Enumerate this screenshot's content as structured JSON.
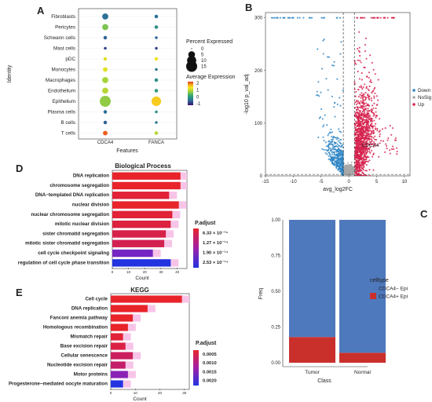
{
  "chart_data": [
    {
      "panel_label": "A",
      "type": "scatter",
      "subtype": "dot_plot",
      "categories": [
        "Fibroblasts",
        "Pericytes",
        "Schwann cells",
        "Mast cells",
        "pDC",
        "Monocytes",
        "Macrophages",
        "Endothelium",
        "Epithelium",
        "Plasma cells",
        "B cells",
        "T cells"
      ],
      "features": [
        "CDCA4",
        "FANCA"
      ],
      "xlabel": "Features",
      "ylabel": "Identity",
      "points": [
        {
          "category": "Fibroblasts",
          "feature": "CDCA4",
          "pct": 4,
          "avg": -0.6
        },
        {
          "category": "Fibroblasts",
          "feature": "FANCA",
          "pct": 1,
          "avg": -0.6
        },
        {
          "category": "Pericytes",
          "feature": "CDCA4",
          "pct": 4,
          "avg": 0.3
        },
        {
          "category": "Pericytes",
          "feature": "FANCA",
          "pct": 1,
          "avg": -0.3
        },
        {
          "category": "Schwann cells",
          "feature": "CDCA4",
          "pct": 1,
          "avg": -0.7
        },
        {
          "category": "Schwann cells",
          "feature": "FANCA",
          "pct": 0.5,
          "avg": -0.7
        },
        {
          "category": "Mast cells",
          "feature": "CDCA4",
          "pct": 0.5,
          "avg": -0.9
        },
        {
          "category": "Mast cells",
          "feature": "FANCA",
          "pct": 0.5,
          "avg": -0.9
        },
        {
          "category": "pDC",
          "feature": "CDCA4",
          "pct": 1,
          "avg": 0.9
        },
        {
          "category": "pDC",
          "feature": "FANCA",
          "pct": 1,
          "avg": 1.0
        },
        {
          "category": "Monocytes",
          "feature": "CDCA4",
          "pct": 2,
          "avg": 0.9
        },
        {
          "category": "Monocytes",
          "feature": "FANCA",
          "pct": 0.5,
          "avg": -0.5
        },
        {
          "category": "Macrophages",
          "feature": "CDCA4",
          "pct": 4,
          "avg": 0.5
        },
        {
          "category": "Macrophages",
          "feature": "FANCA",
          "pct": 1,
          "avg": -0.3
        },
        {
          "category": "Endothelium",
          "feature": "CDCA4",
          "pct": 4,
          "avg": 0.6
        },
        {
          "category": "Endothelium",
          "feature": "FANCA",
          "pct": 1,
          "avg": -0.2
        },
        {
          "category": "Epithelium",
          "feature": "CDCA4",
          "pct": 15,
          "avg": 0.4
        },
        {
          "category": "Epithelium",
          "feature": "FANCA",
          "pct": 11,
          "avg": 1.3
        },
        {
          "category": "Plasma cells",
          "feature": "CDCA4",
          "pct": 1,
          "avg": -0.6
        },
        {
          "category": "Plasma cells",
          "feature": "FANCA",
          "pct": 0.5,
          "avg": -0.3
        },
        {
          "category": "B cells",
          "feature": "CDCA4",
          "pct": 1,
          "avg": -0.7
        },
        {
          "category": "B cells",
          "feature": "FANCA",
          "pct": 0.5,
          "avg": -0.5
        },
        {
          "category": "T cells",
          "feature": "CDCA4",
          "pct": 2,
          "avg": 2.0
        },
        {
          "category": "T cells",
          "feature": "FANCA",
          "pct": 1,
          "avg": 0.6
        }
      ],
      "size_legend_title": "Percent Expressed",
      "size_legend_values": [
        0,
        5,
        10,
        15
      ],
      "color_legend_title": "Average Expression",
      "color_legend_ticks": [
        2,
        1,
        0,
        -1
      ],
      "color_range": [
        -1.2,
        2.2
      ],
      "colors": [
        "#3b0f70",
        "#2c6e9b",
        "#2fa776",
        "#a6d33a",
        "#f9e721",
        "#f3a21b",
        "#e63a1e"
      ]
    },
    {
      "panel_label": "B",
      "type": "scatter",
      "subtype": "volcano",
      "xlabel": "avg_log2FC",
      "ylabel": "-log10 p_val_adj",
      "xlim": [
        -15,
        11
      ],
      "ylim": [
        0,
        310
      ],
      "x_ticks": [
        -15,
        -10,
        -5,
        0,
        5,
        10
      ],
      "y_ticks": [
        0,
        100,
        200,
        300
      ],
      "x_thresholds": [
        -1,
        1
      ],
      "y_threshold": 1.3,
      "annotation": {
        "text": "CDCA4",
        "x": 2.3,
        "y": 55
      },
      "legend": [
        "Down",
        "NoSig",
        "Up"
      ],
      "colors": {
        "Down": "#2f86c6",
        "NoSig": "#a8a8a8",
        "Up": "#d6224d"
      }
    },
    {
      "panel_label": "D",
      "type": "bar",
      "orientation": "horizontal",
      "title": "Biological Process",
      "xlabel": "Count",
      "x_ticks": [
        0,
        10,
        20,
        30,
        40
      ],
      "xlim": [
        0,
        46
      ],
      "categories": [
        "DNA replication",
        "chromosome segregation",
        "DNA−templated DNA replication",
        "nuclear division",
        "nuclear chromosome segregation",
        "mitotic nuclear division",
        "sister chromatid segregation",
        "mitotic sister chromatid segregation",
        "cell cycle checkpoint signaling",
        "regulation of cell cycle phase transition"
      ],
      "values": [
        42,
        42,
        35,
        41,
        37,
        36,
        33,
        32,
        25,
        36
      ],
      "p_adjust_rank": [
        0,
        0,
        0.05,
        0,
        0.05,
        0.08,
        0.12,
        0.15,
        0.7,
        1.0
      ],
      "legend_title": "P.adjust",
      "legend_labels": [
        "6.33 × 10⁻¹⁵",
        "1.27 × 10⁻¹⁴",
        "1.90 × 10⁻¹⁴",
        "2.53 × 10⁻¹⁴"
      ]
    },
    {
      "panel_label": "E",
      "type": "bar",
      "orientation": "horizontal",
      "title": "KEGG",
      "xlabel": "Count",
      "x_ticks": [
        0,
        10,
        20,
        30
      ],
      "xlim": [
        0,
        32
      ],
      "categories": [
        "Cell cycle",
        "DNA replication",
        "Fanconi anemia pathway",
        "Homologous recombination",
        "Mismatch repair",
        "Base excision repair",
        "Cellular senescence",
        "Nucleotide excision repair",
        "Motor proteins",
        "Progesterone−mediated oocyte maturation"
      ],
      "values": [
        29,
        15,
        9,
        7,
        5,
        6,
        9,
        6,
        7,
        5
      ],
      "p_adjust_rank": [
        0,
        0,
        0,
        0,
        0.05,
        0.1,
        0.2,
        0.25,
        0.6,
        1.0
      ],
      "legend_title": "P.adjust",
      "legend_labels": [
        "0.0005",
        "0.0010",
        "0.0015",
        "0.0020"
      ]
    },
    {
      "panel_label": "C",
      "type": "bar",
      "subtype": "stacked_fraction",
      "xlabel": "Class",
      "ylabel": "Freq",
      "categories": [
        "Tumor",
        "Normal"
      ],
      "y_ticks": [
        "0.00",
        "0.25",
        "0.50",
        "0.75",
        "1.00"
      ],
      "series": [
        {
          "name": "CDCA4− Epi",
          "values": [
            0.82,
            0.93
          ]
        },
        {
          "name": "CDCA4+ Epi",
          "values": [
            0.18,
            0.07
          ]
        }
      ],
      "legend_title": "celltype",
      "colors": [
        "#4f79bd",
        "#c9302c"
      ]
    }
  ]
}
